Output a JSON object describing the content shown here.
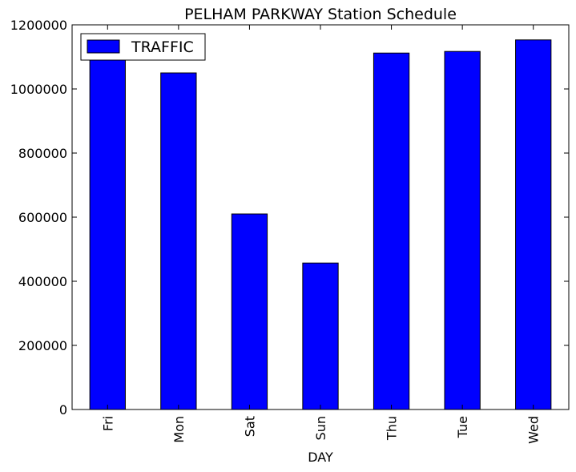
{
  "chart_data": {
    "type": "bar",
    "title": "PELHAM PARKWAY Station Schedule",
    "xlabel": "DAY",
    "ylabel": "",
    "categories": [
      "Fri",
      "Mon",
      "Sat",
      "Sun",
      "Thu",
      "Tue",
      "Wed"
    ],
    "series": [
      {
        "name": "TRAFFIC",
        "values": [
          1090000,
          1050000,
          610000,
          457000,
          1112000,
          1117000,
          1153000
        ],
        "color": "#0000ff"
      }
    ],
    "ylim": [
      0,
      1200000
    ],
    "yticks": [
      0,
      200000,
      400000,
      600000,
      800000,
      1000000,
      1200000
    ],
    "ytick_labels": [
      "0",
      "200000",
      "400000",
      "600000",
      "800000",
      "1000000",
      "1200000"
    ],
    "legend_position": "upper left",
    "grid": false
  }
}
